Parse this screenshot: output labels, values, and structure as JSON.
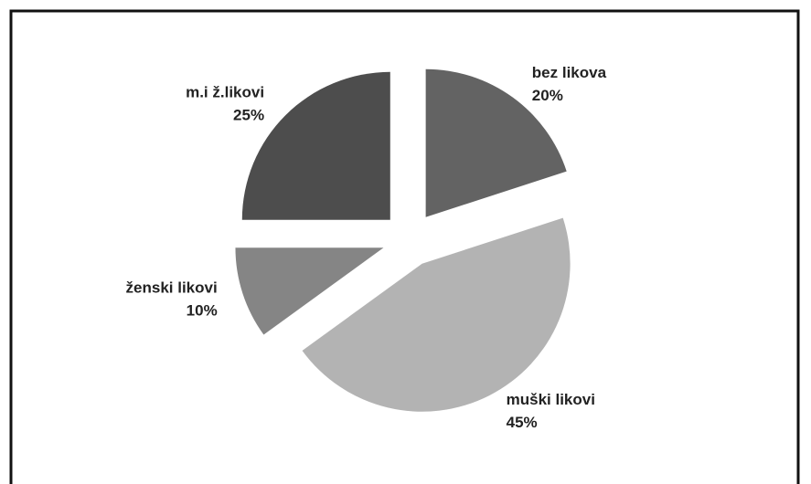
{
  "chart_data": {
    "type": "pie",
    "categories": [
      "bez likova",
      "muški likovi",
      "ženski likovi",
      "m.i ž.likovi"
    ],
    "values": [
      20,
      45,
      10,
      25
    ],
    "value_labels": [
      "20%",
      "45%",
      "10%",
      "25%"
    ],
    "colors": [
      "#636363",
      "#b3b3b3",
      "#858585",
      "#4d4d4d"
    ]
  }
}
